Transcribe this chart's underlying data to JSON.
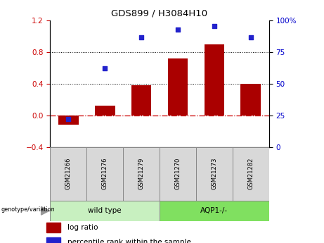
{
  "title": "GDS899 / H3084H10",
  "samples": [
    "GSM21266",
    "GSM21276",
    "GSM21279",
    "GSM21270",
    "GSM21273",
    "GSM21282"
  ],
  "log_ratio": [
    -0.12,
    0.12,
    0.38,
    0.72,
    0.9,
    0.4
  ],
  "percentile_rank": [
    22,
    62,
    87,
    93,
    96,
    87
  ],
  "bar_color": "#aa0000",
  "dot_color": "#2222cc",
  "ylim_left": [
    -0.4,
    1.2
  ],
  "ylim_right": [
    0,
    100
  ],
  "yticks_left": [
    -0.4,
    0.0,
    0.4,
    0.8,
    1.2
  ],
  "yticks_right": [
    0,
    25,
    50,
    75,
    100
  ],
  "hline_zero_color": "#cc0000",
  "hline_dotted_color": "#000000",
  "group1_label": "wild type",
  "group2_label": "AQP1-/-",
  "group1_indices": [
    0,
    1,
    2
  ],
  "group2_indices": [
    3,
    4,
    5
  ],
  "group1_color": "#c8f0c0",
  "group2_color": "#80e060",
  "genotype_label": "genotype/variation",
  "legend_bar_label": "log ratio",
  "legend_dot_label": "percentile rank within the sample",
  "tick_label_color_left": "#cc0000",
  "tick_label_color_right": "#0000cc",
  "bg_plot": "#ffffff",
  "bg_xtick": "#d8d8d8"
}
